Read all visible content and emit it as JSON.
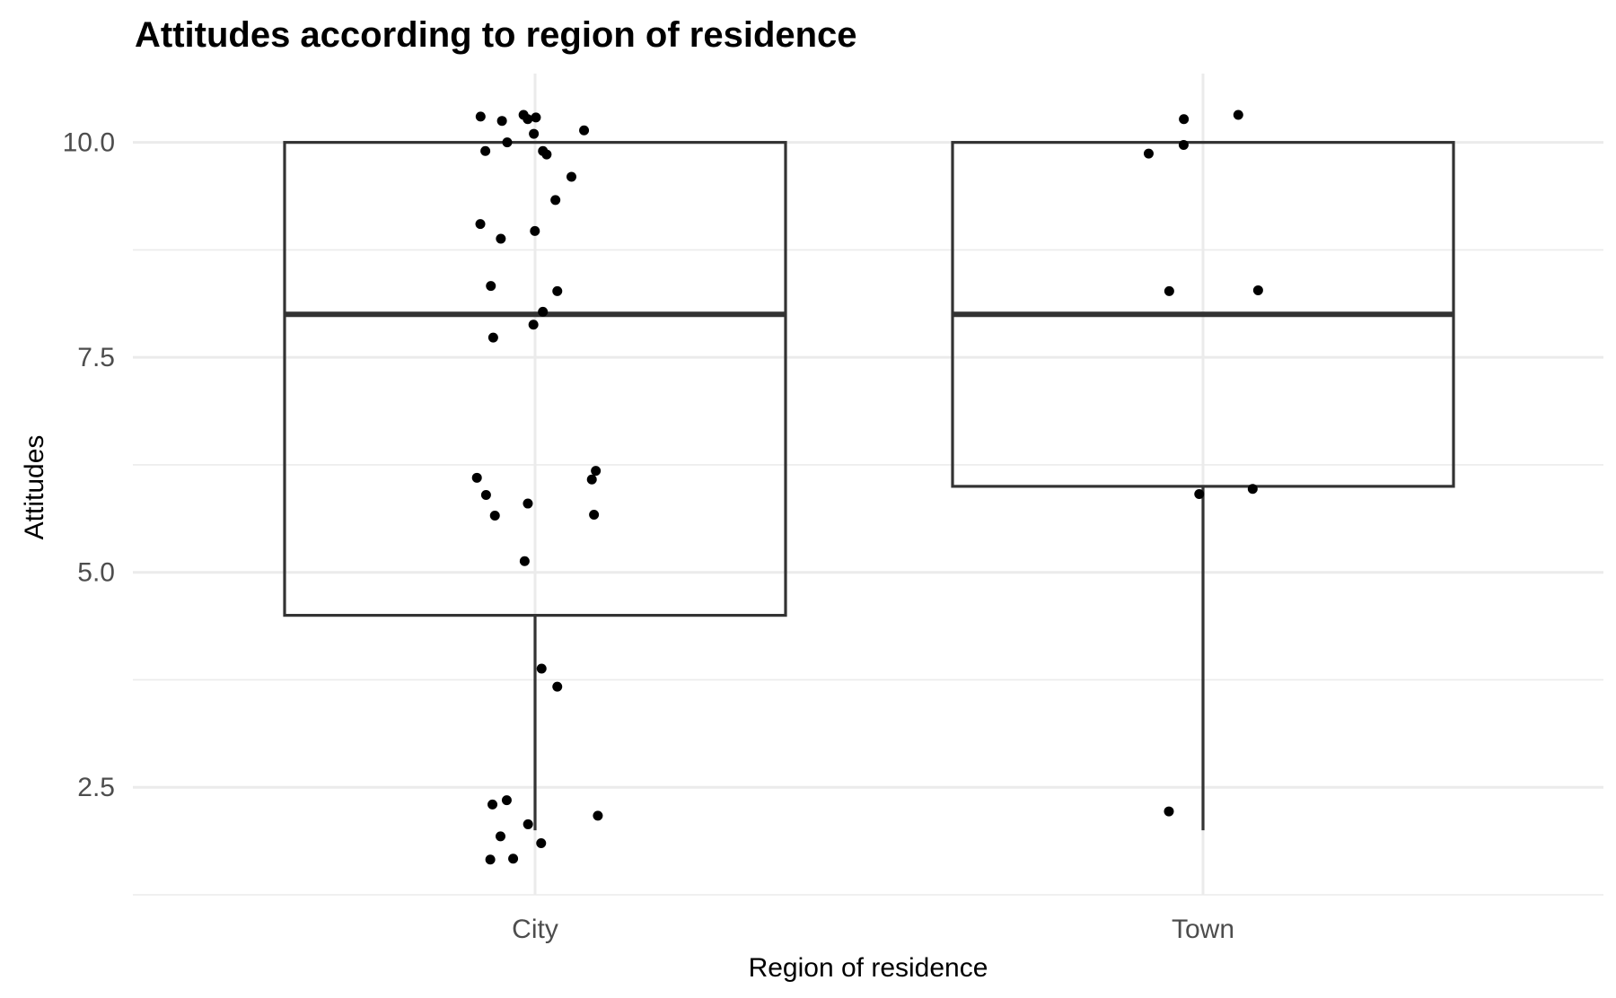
{
  "chart_data": {
    "type": "box",
    "title": "Attitudes according to region of residence",
    "xlabel": "Region of residence",
    "ylabel": "Attitudes",
    "categories": [
      "City",
      "Town"
    ],
    "ylim": [
      1.25,
      10.8
    ],
    "yticks": [
      2.5,
      5.0,
      7.5,
      10.0
    ],
    "ytick_labels": [
      "2.5",
      "5.0",
      "7.5",
      "10.0"
    ],
    "grid": true,
    "boxes": [
      {
        "category": "City",
        "whisker_low": 2.0,
        "q1": 4.5,
        "median": 8.0,
        "q3": 10.0,
        "whisker_high": 10.0
      },
      {
        "category": "Town",
        "whisker_low": 2.0,
        "q1": 6.0,
        "median": 8.0,
        "q3": 10.0,
        "whisker_high": 10.0
      }
    ],
    "points": [
      {
        "category": "City",
        "values": [
          10.1,
          9.9,
          9.9,
          10.25,
          10.27,
          10.29,
          10.3,
          10.14,
          9.86,
          10.32,
          10.0,
          9.6,
          9.33,
          9.05,
          8.97,
          8.88,
          8.27,
          8.33,
          8.03,
          7.88,
          7.73,
          6.1,
          6.08,
          6.18,
          5.9,
          5.8,
          5.67,
          5.66,
          5.13,
          3.88,
          3.67,
          2.35,
          2.3,
          2.17,
          2.07,
          1.93,
          1.85,
          1.67,
          1.66
        ]
      },
      {
        "category": "Town",
        "values": [
          10.32,
          10.27,
          9.97,
          9.87,
          8.28,
          8.27,
          5.97,
          5.91,
          2.22
        ]
      }
    ],
    "colors": {
      "box_stroke": "#333333",
      "points": "#000000",
      "grid": "#ebebeb",
      "tick_text": "#4d4d4d",
      "background": "#ffffff"
    }
  }
}
